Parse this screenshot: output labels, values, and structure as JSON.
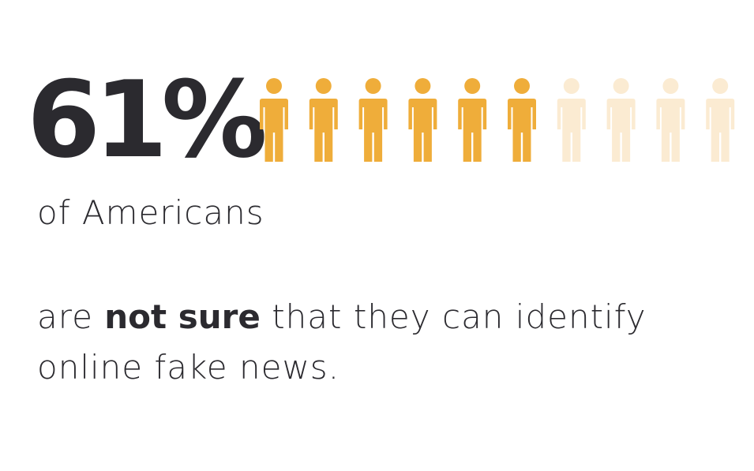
{
  "stat": {
    "value_text": "61%"
  },
  "chart_data": {
    "type": "pictogram",
    "value": 61,
    "unit": "percent",
    "total_icons": 10,
    "filled_icons": 6,
    "icon": "person-icon",
    "colors": {
      "filled": "#EFAD3A",
      "empty": "#FBEBD2"
    }
  },
  "text": {
    "subject": "of Americans",
    "pre": "are",
    "emphasis": "not sure",
    "post": "that they can identify online fake news."
  }
}
